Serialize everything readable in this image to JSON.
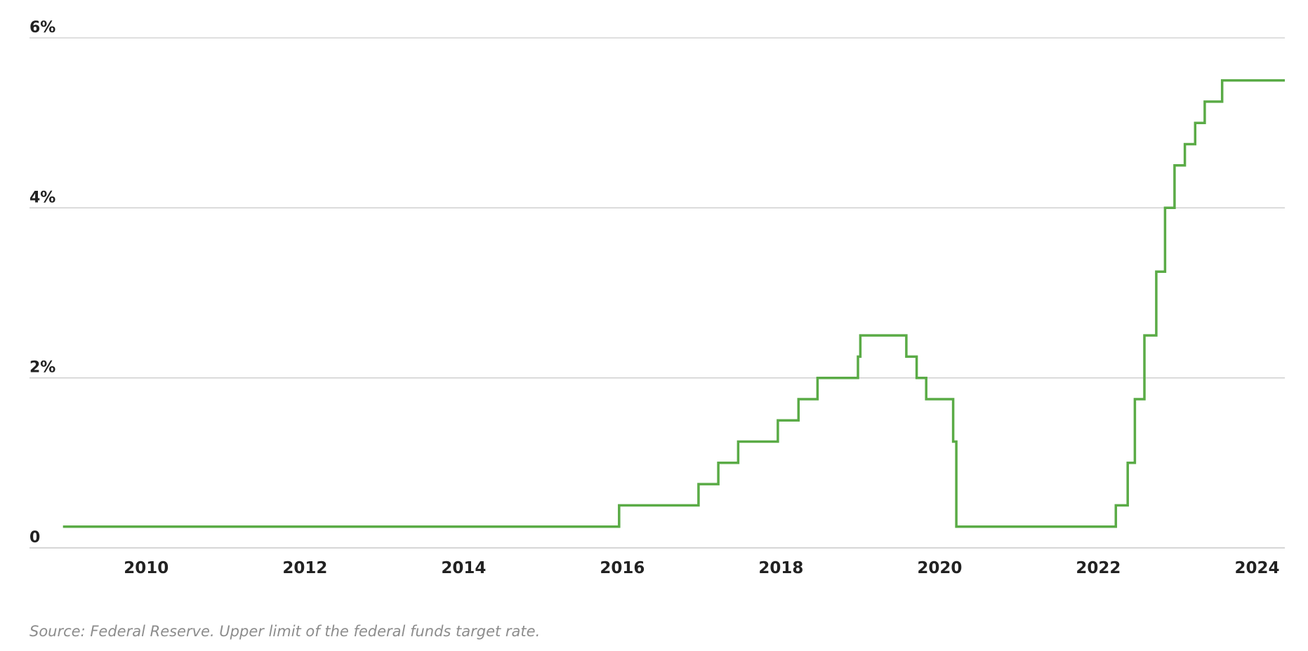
{
  "chart_data": {
    "type": "line",
    "step": true,
    "title": "",
    "xlabel": "",
    "ylabel": "",
    "xlim": [
      2008.9,
      2024.35
    ],
    "ylim": [
      0,
      6
    ],
    "yticks": [
      {
        "value": 0,
        "label": "0"
      },
      {
        "value": 2,
        "label": "2%"
      },
      {
        "value": 4,
        "label": "4%"
      },
      {
        "value": 6,
        "label": "6%"
      }
    ],
    "xticks": [
      {
        "value": 2010,
        "label": "2010"
      },
      {
        "value": 2012,
        "label": "2012"
      },
      {
        "value": 2014,
        "label": "2014"
      },
      {
        "value": 2016,
        "label": "2016"
      },
      {
        "value": 2018,
        "label": "2018"
      },
      {
        "value": 2020,
        "label": "2020"
      },
      {
        "value": 2022,
        "label": "2022"
      },
      {
        "value": 2024,
        "label": "2024"
      }
    ],
    "grid": true,
    "legend": "none",
    "series": [
      {
        "color": "#5aab46",
        "points": [
          [
            2008.95,
            0.25
          ],
          [
            2015.96,
            0.5
          ],
          [
            2016.96,
            0.75
          ],
          [
            2017.21,
            1.0
          ],
          [
            2017.46,
            1.25
          ],
          [
            2017.96,
            1.5
          ],
          [
            2018.22,
            1.75
          ],
          [
            2018.46,
            2.0
          ],
          [
            2018.97,
            2.25
          ],
          [
            2019.0,
            2.5
          ],
          [
            2019.58,
            2.25
          ],
          [
            2019.71,
            2.0
          ],
          [
            2019.83,
            1.75
          ],
          [
            2020.17,
            1.25
          ],
          [
            2020.21,
            0.25
          ],
          [
            2022.22,
            0.5
          ],
          [
            2022.37,
            1.0
          ],
          [
            2022.46,
            1.75
          ],
          [
            2022.58,
            2.5
          ],
          [
            2022.73,
            3.25
          ],
          [
            2022.84,
            4.0
          ],
          [
            2022.96,
            4.5
          ],
          [
            2023.09,
            4.75
          ],
          [
            2023.22,
            5.0
          ],
          [
            2023.34,
            5.25
          ],
          [
            2023.56,
            5.5
          ],
          [
            2024.35,
            5.5
          ]
        ]
      }
    ]
  },
  "source_note": "Source: Federal Reserve. Upper limit of the federal funds target rate."
}
